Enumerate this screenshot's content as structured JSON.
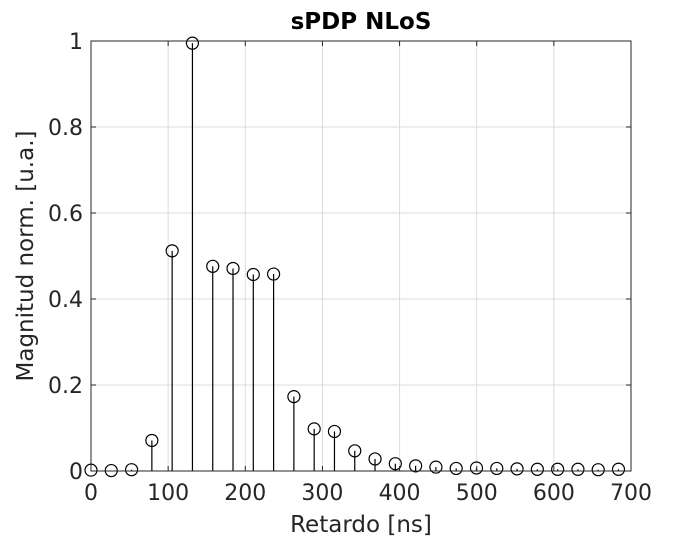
{
  "chart_data": {
    "type": "stem",
    "title": "sPDP NLoS",
    "xlabel": "Retardo [ns]",
    "ylabel": "Magnitud norm. [u.a.]",
    "xlim": [
      0,
      700
    ],
    "ylim": [
      0,
      1
    ],
    "xticks": [
      0,
      100,
      200,
      300,
      400,
      500,
      600,
      700
    ],
    "yticks": [
      0,
      0.2,
      0.4,
      0.6,
      0.8,
      1
    ],
    "xtick_labels": [
      "0",
      "100",
      "200",
      "300",
      "400",
      "500",
      "600",
      "700"
    ],
    "ytick_labels": [
      "0",
      "0.2",
      "0.4",
      "0.6",
      "0.8",
      "1"
    ],
    "grid": true,
    "marker": "circle-open",
    "series": [
      {
        "x": [
          0,
          26.3,
          52.6,
          78.9,
          105.2,
          131.5,
          157.8,
          184.1,
          210.4,
          236.7,
          263,
          289.3,
          315.6,
          341.9,
          368.2,
          394.5,
          420.8,
          447.1,
          473.4,
          499.7,
          526,
          552.3,
          578.6,
          604.9,
          631.2,
          657.5,
          683.8
        ],
        "y": [
          0.002,
          0.001,
          0.003,
          0.071,
          0.512,
          0.995,
          0.476,
          0.471,
          0.457,
          0.458,
          0.173,
          0.098,
          0.092,
          0.047,
          0.028,
          0.017,
          0.012,
          0.009,
          0.006,
          0.007,
          0.006,
          0.005,
          0.004,
          0.004,
          0.004,
          0.003,
          0.004
        ]
      }
    ]
  }
}
